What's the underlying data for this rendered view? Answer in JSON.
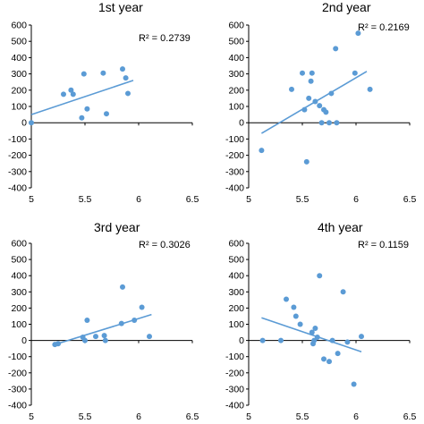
{
  "chart_data": [
    {
      "type": "scatter",
      "title": "1st year",
      "r2_label": "R² = 0.2739",
      "xlim": [
        5,
        6.5
      ],
      "ylim": [
        -400,
        600
      ],
      "xticks": [
        "5",
        "5.5",
        "6",
        "6.5"
      ],
      "yticks": [
        "-400",
        "-300",
        "-200",
        "-100",
        "0",
        "100",
        "200",
        "300",
        "400",
        "500",
        "600"
      ],
      "trendline": {
        "x": [
          5,
          5.95
        ],
        "y": [
          50,
          260
        ]
      },
      "points": [
        {
          "x": 5.0,
          "y": 0
        },
        {
          "x": 5.3,
          "y": 175
        },
        {
          "x": 5.37,
          "y": 200
        },
        {
          "x": 5.39,
          "y": 175
        },
        {
          "x": 5.47,
          "y": 30
        },
        {
          "x": 5.49,
          "y": 300
        },
        {
          "x": 5.52,
          "y": 85
        },
        {
          "x": 5.67,
          "y": 305
        },
        {
          "x": 5.7,
          "y": 55
        },
        {
          "x": 5.85,
          "y": 330
        },
        {
          "x": 5.88,
          "y": 275
        },
        {
          "x": 5.9,
          "y": 180
        }
      ]
    },
    {
      "type": "scatter",
      "title": "2nd year",
      "r2_label": "R² = 0.2169",
      "xlim": [
        5,
        6.5
      ],
      "ylim": [
        -400,
        600
      ],
      "xticks": [
        "5",
        "5.5",
        "6",
        "6.5"
      ],
      "yticks": [
        "-400",
        "-300",
        "-200",
        "-100",
        "0",
        "100",
        "200",
        "300",
        "400",
        "500",
        "600"
      ],
      "trendline": {
        "x": [
          5.12,
          6.1
        ],
        "y": [
          -65,
          315
        ]
      },
      "points": [
        {
          "x": 5.12,
          "y": -170
        },
        {
          "x": 5.4,
          "y": 205
        },
        {
          "x": 5.5,
          "y": 305
        },
        {
          "x": 5.52,
          "y": 80
        },
        {
          "x": 5.54,
          "y": -240
        },
        {
          "x": 5.56,
          "y": 150
        },
        {
          "x": 5.58,
          "y": 255
        },
        {
          "x": 5.59,
          "y": 305
        },
        {
          "x": 5.62,
          "y": 130
        },
        {
          "x": 5.66,
          "y": 105
        },
        {
          "x": 5.68,
          "y": 0
        },
        {
          "x": 5.7,
          "y": 80
        },
        {
          "x": 5.72,
          "y": 65
        },
        {
          "x": 5.75,
          "y": 0
        },
        {
          "x": 5.77,
          "y": 180
        },
        {
          "x": 5.81,
          "y": 455
        },
        {
          "x": 5.82,
          "y": 0
        },
        {
          "x": 5.99,
          "y": 305
        },
        {
          "x": 6.02,
          "y": 550
        },
        {
          "x": 6.13,
          "y": 205
        }
      ]
    },
    {
      "type": "scatter",
      "title": "3rd year",
      "r2_label": "R² = 0.3026",
      "xlim": [
        5,
        6.5
      ],
      "ylim": [
        -400,
        600
      ],
      "xticks": [
        "5",
        "5.5",
        "6",
        "6.5"
      ],
      "yticks": [
        "-400",
        "-300",
        "-200",
        "-100",
        "0",
        "100",
        "200",
        "300",
        "400",
        "500",
        "600"
      ],
      "trendline": {
        "x": [
          5.22,
          6.12
        ],
        "y": [
          -25,
          160
        ]
      },
      "points": [
        {
          "x": 5.22,
          "y": -25
        },
        {
          "x": 5.25,
          "y": -20
        },
        {
          "x": 5.48,
          "y": 20
        },
        {
          "x": 5.5,
          "y": 0
        },
        {
          "x": 5.52,
          "y": 125
        },
        {
          "x": 5.6,
          "y": 25
        },
        {
          "x": 5.68,
          "y": 30
        },
        {
          "x": 5.69,
          "y": 0
        },
        {
          "x": 5.84,
          "y": 105
        },
        {
          "x": 5.85,
          "y": 330
        },
        {
          "x": 5.96,
          "y": 125
        },
        {
          "x": 6.03,
          "y": 205
        },
        {
          "x": 6.1,
          "y": 25
        }
      ]
    },
    {
      "type": "scatter",
      "title": "4th year",
      "r2_label": "R² = 0.1159",
      "xlim": [
        5,
        6.5
      ],
      "ylim": [
        -400,
        600
      ],
      "xticks": [
        "5",
        "5.5",
        "6",
        "6.5"
      ],
      "yticks": [
        "-400",
        "-300",
        "-200",
        "-100",
        "0",
        "100",
        "200",
        "300",
        "400",
        "500",
        "600"
      ],
      "trendline": {
        "x": [
          5.12,
          6.05
        ],
        "y": [
          140,
          -70
        ]
      },
      "points": [
        {
          "x": 5.13,
          "y": 0
        },
        {
          "x": 5.3,
          "y": 0
        },
        {
          "x": 5.35,
          "y": 255
        },
        {
          "x": 5.42,
          "y": 205
        },
        {
          "x": 5.44,
          "y": 150
        },
        {
          "x": 5.48,
          "y": 100
        },
        {
          "x": 5.59,
          "y": 50
        },
        {
          "x": 5.6,
          "y": -20
        },
        {
          "x": 5.61,
          "y": 0
        },
        {
          "x": 5.62,
          "y": 75
        },
        {
          "x": 5.64,
          "y": 20
        },
        {
          "x": 5.66,
          "y": 400
        },
        {
          "x": 5.7,
          "y": -115
        },
        {
          "x": 5.75,
          "y": -130
        },
        {
          "x": 5.78,
          "y": 0
        },
        {
          "x": 5.83,
          "y": -80
        },
        {
          "x": 5.88,
          "y": 300
        },
        {
          "x": 5.92,
          "y": -10
        },
        {
          "x": 5.98,
          "y": -270
        },
        {
          "x": 6.05,
          "y": 25
        }
      ]
    }
  ]
}
